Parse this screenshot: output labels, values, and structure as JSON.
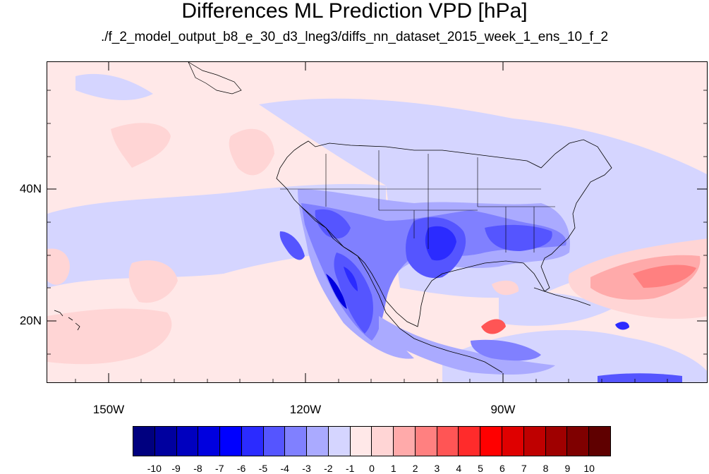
{
  "title": "Differences ML Prediction VPD [hPa]",
  "subtitle": "./f_2_model_output_b8_e_30_d3_lneg3/diffs_nn_dataset_2015_week_1_ens_10_f_2",
  "lat_labels": [
    "40N",
    "20N"
  ],
  "lon_labels": [
    "150W",
    "120W",
    "90W"
  ],
  "colorbar": {
    "colors": [
      "#00007f",
      "#00009f",
      "#0000bf",
      "#0000df",
      "#0000ff",
      "#2b2bff",
      "#5555ff",
      "#8080ff",
      "#aaaaff",
      "#d5d5ff",
      "#ffe8e8",
      "#ffd5d5",
      "#ffaaaa",
      "#ff8080",
      "#ff5555",
      "#ff2b2b",
      "#ff0000",
      "#df0000",
      "#bf0000",
      "#9f0000",
      "#7f0000",
      "#5f0000"
    ],
    "labels": [
      "-10",
      "-9",
      "-8",
      "-7",
      "-6",
      "-5",
      "-4",
      "-3",
      "-2",
      "-1",
      "0",
      "1",
      "2",
      "3",
      "4",
      "5",
      "6",
      "7",
      "8",
      "9",
      "10"
    ]
  }
}
